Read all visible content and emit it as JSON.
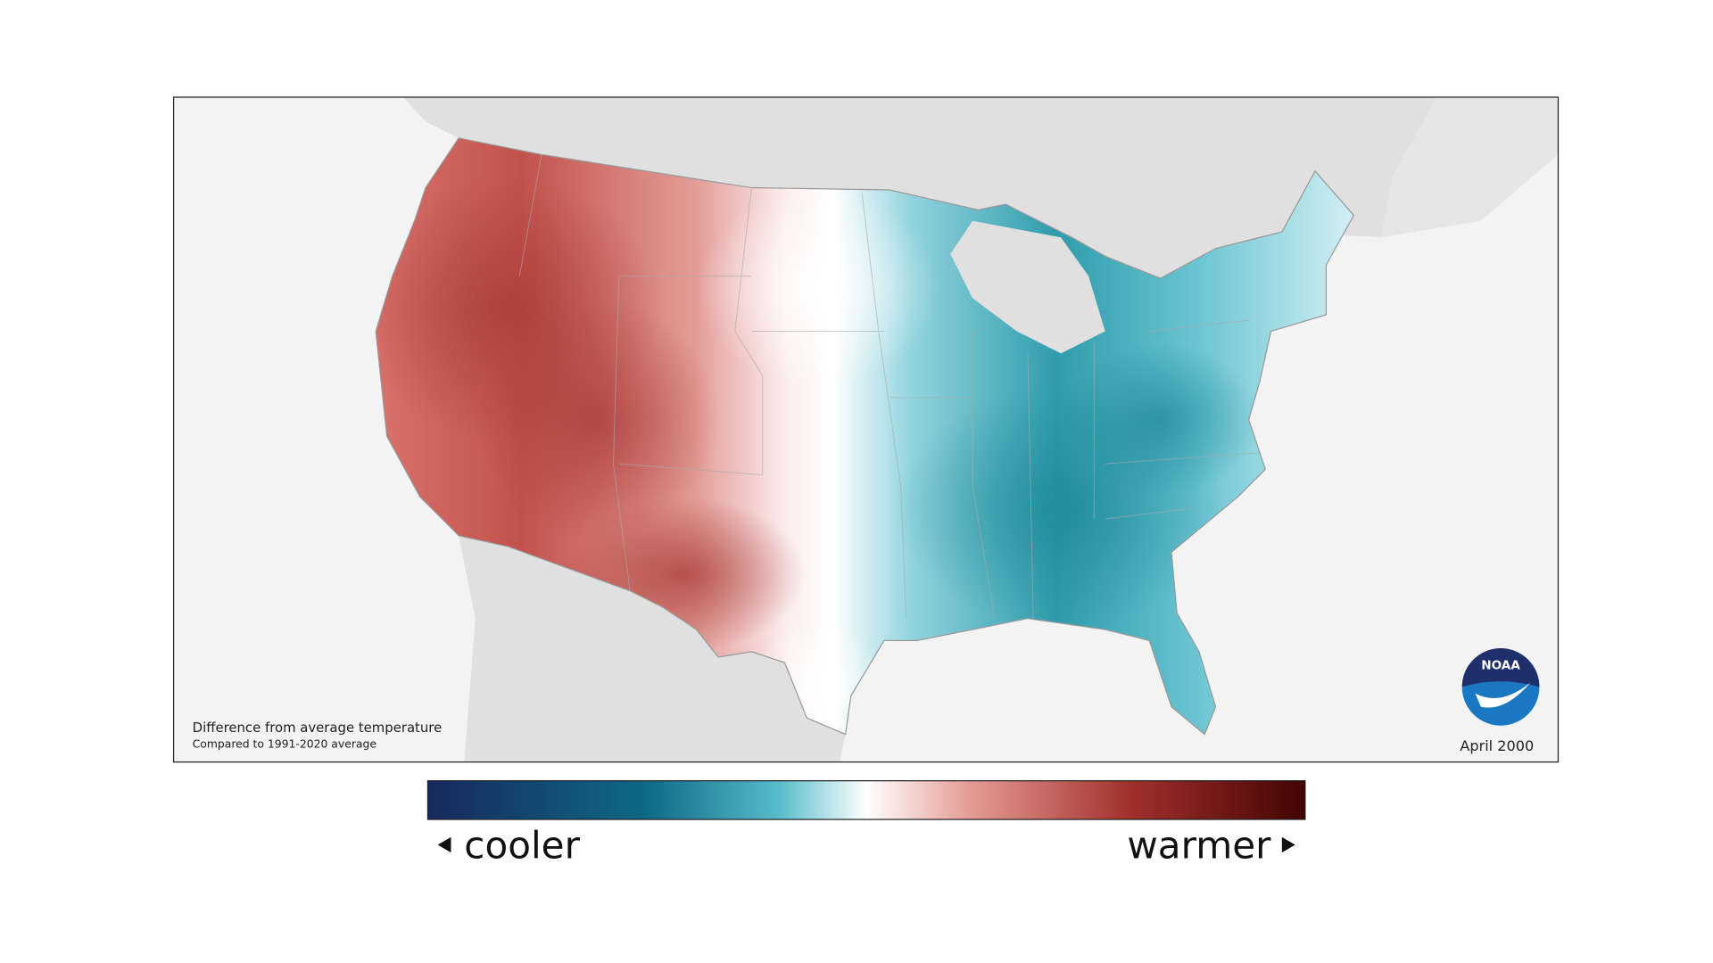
{
  "map": {
    "title": "Difference from average temperature",
    "subtitle": "Compared to 1991-2020 average",
    "date": "April 2000",
    "logo": "NOAA"
  },
  "legend": {
    "low": "cooler",
    "high": "warmer"
  }
}
